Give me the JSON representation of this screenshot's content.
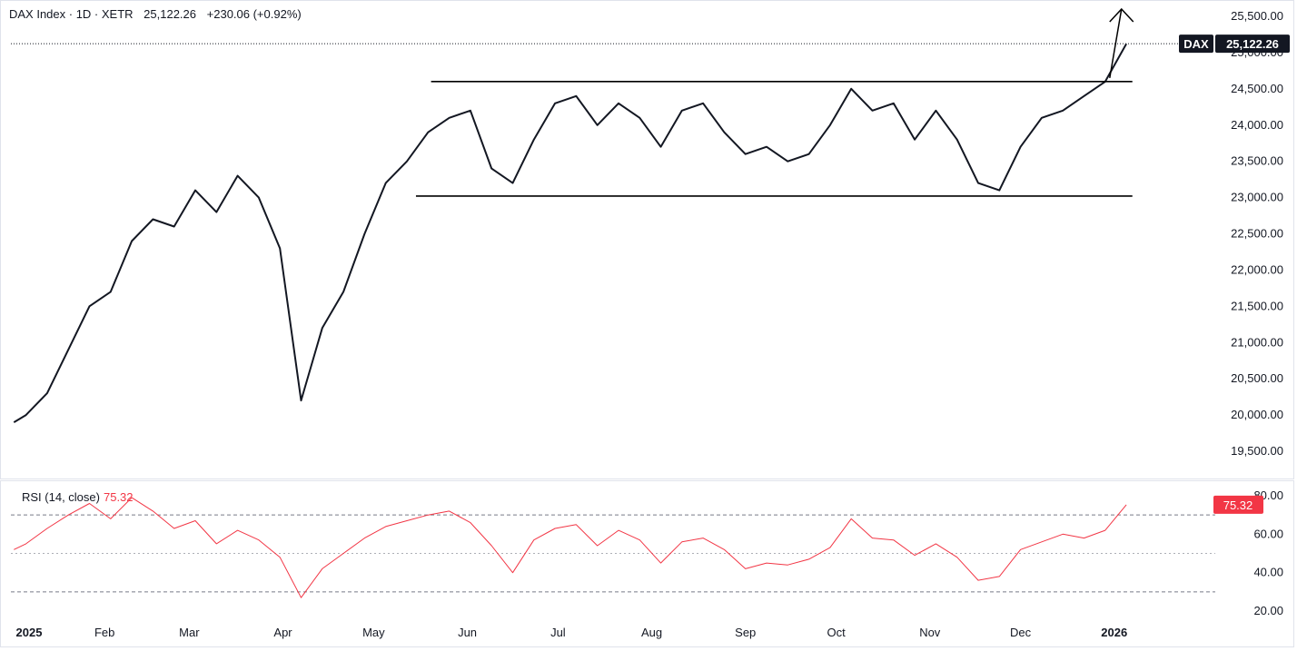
{
  "header": {
    "title": "DAX Index · 1D · XETR",
    "last": "25,122.26",
    "change": "+230.06 (+0.92%)"
  },
  "price_tag": {
    "symbol": "DAX",
    "value": "25,122.26"
  },
  "rsi_header": {
    "label": "RSI (14, close)",
    "value": "75.32"
  },
  "rsi_tag": {
    "value": "75.32"
  },
  "colors": {
    "price": "#131722",
    "rsi": "#f23645",
    "grid": "#787b86",
    "tag_bg": "#131722",
    "rsi_tag_bg": "#f23645"
  },
  "chart_data": [
    {
      "type": "line",
      "series": [
        {
          "x": [
            "2025-01-02",
            "2025-01-06",
            "2025-01-13",
            "2025-01-20",
            "2025-01-27",
            "2025-02-03",
            "2025-02-10",
            "2025-02-17",
            "2025-02-24",
            "2025-03-03",
            "2025-03-10",
            "2025-03-17",
            "2025-03-24",
            "2025-03-31",
            "2025-04-07",
            "2025-04-14",
            "2025-04-21",
            "2025-04-28",
            "2025-05-05",
            "2025-05-12",
            "2025-05-19",
            "2025-05-26",
            "2025-06-02",
            "2025-06-09",
            "2025-06-16",
            "2025-06-23",
            "2025-06-30",
            "2025-07-07",
            "2025-07-14",
            "2025-07-21",
            "2025-07-28",
            "2025-08-04",
            "2025-08-11",
            "2025-08-18",
            "2025-08-25",
            "2025-09-01",
            "2025-09-08",
            "2025-09-15",
            "2025-09-22",
            "2025-09-29",
            "2025-10-06",
            "2025-10-13",
            "2025-10-20",
            "2025-10-27",
            "2025-11-03",
            "2025-11-10",
            "2025-11-17",
            "2025-11-24",
            "2025-12-01",
            "2025-12-08",
            "2025-12-15",
            "2025-12-22",
            "2025-12-29",
            "2026-01-05"
          ],
          "values": [
            19900,
            20000,
            20300,
            20900,
            21500,
            21700,
            22400,
            22700,
            22600,
            23100,
            22800,
            23300,
            23000,
            22300,
            20200,
            21200,
            21700,
            22500,
            23200,
            23500,
            23900,
            24100,
            24200,
            23400,
            23200,
            23800,
            24300,
            24400,
            24000,
            24300,
            24100,
            23700,
            24200,
            24300,
            23900,
            23600,
            23700,
            23500,
            23600,
            24000,
            24500,
            24200,
            24300,
            23800,
            24200,
            23800,
            23200,
            23100,
            23700,
            24100,
            24200,
            24400,
            24600,
            25122.26
          ]
        }
      ],
      "ylim": [
        19200,
        25700
      ],
      "yticks": [
        "19,500.00",
        "20,000.00",
        "20,500.00",
        "21,000.00",
        "21,500.00",
        "22,000.00",
        "22,500.00",
        "23,000.00",
        "23,500.00",
        "24,000.00",
        "24,500.00",
        "25,000.00",
        "25,500.00"
      ],
      "annotations": {
        "resistance": {
          "from": "2025-05-20",
          "to": "2026-01-07",
          "value": 24600
        },
        "support": {
          "from": "2025-05-15",
          "to": "2026-01-07",
          "value": 23020
        },
        "arrow": {
          "from": [
            "2025-12-29",
            24650
          ],
          "to": [
            "2026-01-01",
            25600
          ]
        },
        "last_price_line": 25122.26
      }
    },
    {
      "type": "line",
      "series": [
        {
          "name": "RSI (14, close)",
          "x": [
            "2025-01-02",
            "2025-01-06",
            "2025-01-13",
            "2025-01-20",
            "2025-01-27",
            "2025-02-03",
            "2025-02-10",
            "2025-02-17",
            "2025-02-24",
            "2025-03-03",
            "2025-03-10",
            "2025-03-17",
            "2025-03-24",
            "2025-03-31",
            "2025-04-07",
            "2025-04-14",
            "2025-04-21",
            "2025-04-28",
            "2025-05-05",
            "2025-05-12",
            "2025-05-19",
            "2025-05-26",
            "2025-06-02",
            "2025-06-09",
            "2025-06-16",
            "2025-06-23",
            "2025-06-30",
            "2025-07-07",
            "2025-07-14",
            "2025-07-21",
            "2025-07-28",
            "2025-08-04",
            "2025-08-11",
            "2025-08-18",
            "2025-08-25",
            "2025-09-01",
            "2025-09-08",
            "2025-09-15",
            "2025-09-22",
            "2025-09-29",
            "2025-10-06",
            "2025-10-13",
            "2025-10-20",
            "2025-10-27",
            "2025-11-03",
            "2025-11-10",
            "2025-11-17",
            "2025-11-24",
            "2025-12-01",
            "2025-12-08",
            "2025-12-15",
            "2025-12-22",
            "2025-12-29",
            "2026-01-05"
          ],
          "values": [
            52,
            55,
            63,
            70,
            76,
            68,
            79,
            72,
            63,
            67,
            55,
            62,
            57,
            48,
            27,
            42,
            50,
            58,
            64,
            67,
            70,
            72,
            66,
            54,
            40,
            57,
            63,
            65,
            54,
            62,
            57,
            45,
            56,
            58,
            52,
            42,
            45,
            44,
            47,
            53,
            68,
            58,
            57,
            49,
            55,
            48,
            36,
            38,
            52,
            56,
            60,
            58,
            62,
            75.32
          ]
        }
      ],
      "ylim": [
        20,
        80
      ],
      "yticks": [
        "20.00",
        "40.00",
        "60.00",
        "80.00"
      ],
      "levels": [
        70,
        50,
        30
      ]
    }
  ],
  "x_axis": {
    "labels": [
      "2025",
      "Feb",
      "Mar",
      "Apr",
      "May",
      "Jun",
      "Jul",
      "Aug",
      "Sep",
      "Oct",
      "Nov",
      "Dec",
      "2026"
    ],
    "dates": [
      "2025-01-01",
      "2025-02-01",
      "2025-03-01",
      "2025-04-01",
      "2025-05-01",
      "2025-06-01",
      "2025-07-01",
      "2025-08-01",
      "2025-09-01",
      "2025-10-01",
      "2025-11-01",
      "2025-12-01",
      "2026-01-01"
    ],
    "bold": [
      true,
      false,
      false,
      false,
      false,
      false,
      false,
      false,
      false,
      false,
      false,
      false,
      true
    ]
  }
}
